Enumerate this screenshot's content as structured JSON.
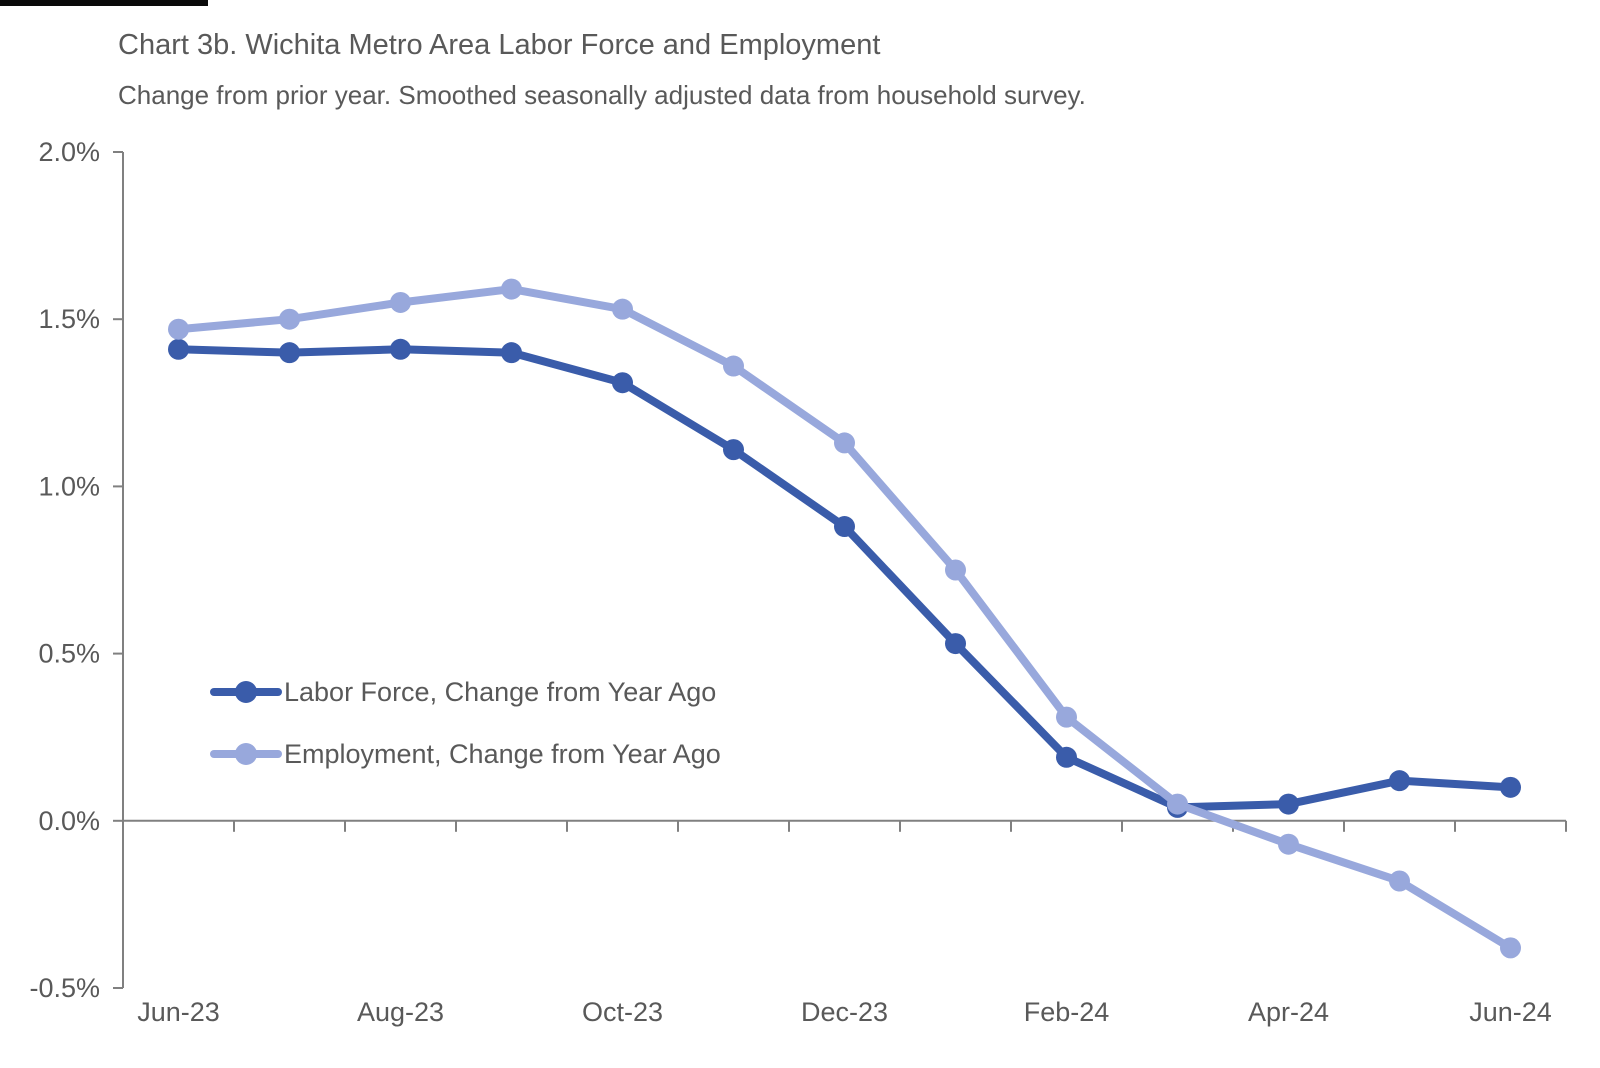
{
  "header": {
    "title": "Chart 3b. Wichita Metro Area Labor Force and Employment",
    "subtitle": "Change from prior year. Smoothed seasonally adjusted data from household survey."
  },
  "chart_data": {
    "type": "line",
    "x": [
      "Jun-23",
      "Jul-23",
      "Aug-23",
      "Sep-23",
      "Oct-23",
      "Nov-23",
      "Dec-23",
      "Jan-24",
      "Feb-24",
      "Mar-24",
      "Apr-24",
      "May-24",
      "Jun-24"
    ],
    "x_tick_labels_shown": [
      "Jun-23",
      "Aug-23",
      "Oct-23",
      "Dec-23",
      "Feb-24",
      "Apr-24",
      "Jun-24"
    ],
    "x_label_every": 2,
    "series": [
      {
        "name": "Labor Force, Change from Year Ago",
        "color": "#3a5caa",
        "values": [
          1.41,
          1.4,
          1.41,
          1.4,
          1.31,
          1.11,
          0.88,
          0.53,
          0.19,
          0.04,
          0.05,
          0.12,
          0.1
        ]
      },
      {
        "name": "Employment, Change from Year Ago",
        "color": "#98a8dc",
        "values": [
          1.47,
          1.5,
          1.55,
          1.59,
          1.53,
          1.36,
          1.13,
          0.75,
          0.31,
          0.05,
          -0.07,
          -0.18,
          -0.38
        ]
      }
    ],
    "unit": "percent",
    "ylim": [
      -0.5,
      2.0
    ],
    "y_tick_step": 0.5,
    "y_tick_labels": [
      "2.0%",
      "1.5%",
      "1.0%",
      "0.5%",
      "0.0%",
      "-0.5%"
    ],
    "grid": "zero-line-only",
    "legend_position": "inside-lower-left",
    "axis_color": "#808080",
    "text_color": "#595959"
  }
}
